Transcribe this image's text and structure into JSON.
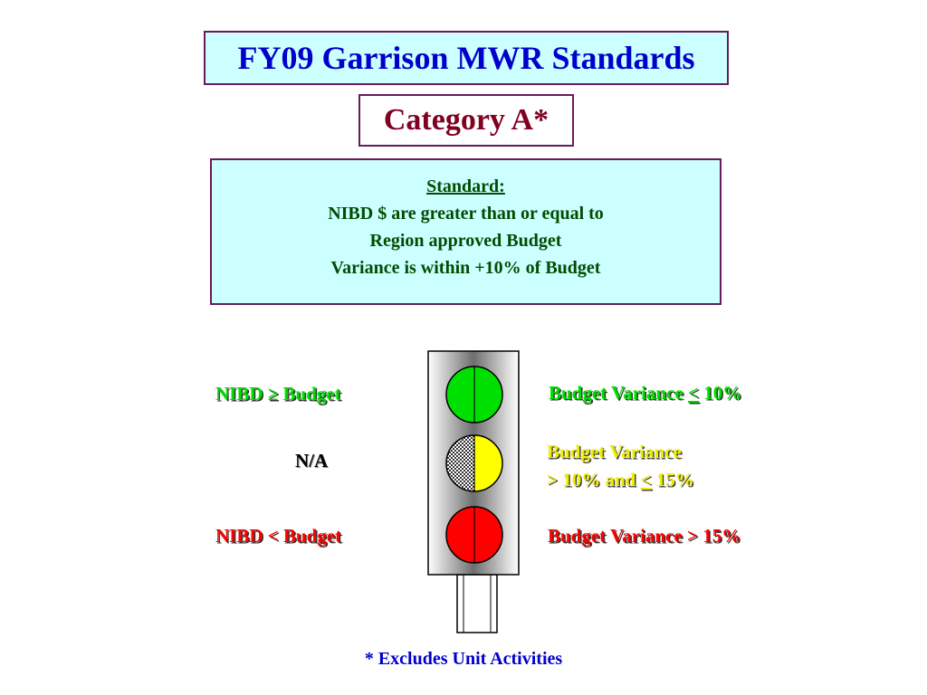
{
  "title": "FY09 Garrison MWR Standards",
  "category": "Category A*",
  "standard": {
    "heading": "Standard:",
    "lines": [
      "NIBD $ are greater than or equal to",
      "Region approved Budget",
      "Variance is within +10% of Budget"
    ]
  },
  "left_labels": {
    "green": "NIBD ≥ Budget",
    "yellow": "N/A",
    "red": "NIBD < Budget"
  },
  "right_labels": {
    "green_prefix": "Budget Variance ",
    "green_symbol": "<",
    "green_suffix": " 10%",
    "yellow_line1": "Budget Variance",
    "yellow_line2_prefix": "> 10% and ",
    "yellow_line2_symbol": "<",
    "yellow_line2_suffix": " 15%",
    "red": "Budget Variance > 15%"
  },
  "footnote": "* Excludes Unit Activities",
  "colors": {
    "green_light": "#00e000",
    "yellow_light": "#ffff00",
    "red_light": "#ff0000",
    "title": "#0000cc",
    "category": "#800020"
  }
}
